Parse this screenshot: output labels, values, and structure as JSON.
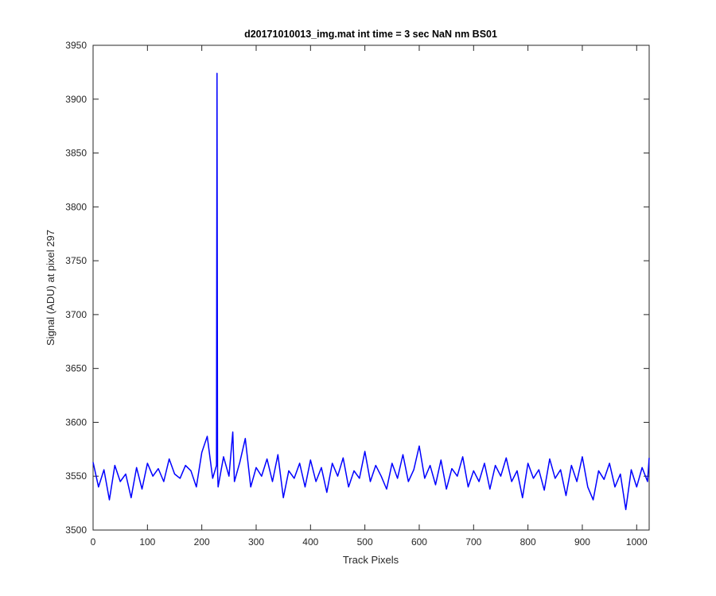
{
  "chart_data": {
    "type": "line",
    "title": "d20171010013_img.mat int time = 3 sec  NaN nm BS01",
    "x_label": "Track Pixels",
    "y_label": "Signal (ADU) at pixel 297",
    "x": [
      0,
      10,
      20,
      30,
      40,
      50,
      60,
      70,
      80,
      90,
      100,
      110,
      120,
      130,
      140,
      150,
      160,
      170,
      180,
      190,
      200,
      210,
      220,
      227,
      228,
      229,
      230,
      240,
      250,
      257,
      260,
      270,
      280,
      290,
      300,
      310,
      320,
      330,
      340,
      350,
      360,
      370,
      380,
      390,
      400,
      410,
      420,
      430,
      440,
      450,
      460,
      470,
      480,
      490,
      500,
      510,
      520,
      530,
      540,
      550,
      560,
      570,
      580,
      590,
      600,
      610,
      620,
      630,
      640,
      650,
      660,
      670,
      680,
      690,
      700,
      710,
      720,
      730,
      740,
      750,
      760,
      770,
      780,
      790,
      800,
      810,
      820,
      830,
      840,
      850,
      860,
      870,
      880,
      890,
      900,
      910,
      920,
      930,
      940,
      950,
      960,
      970,
      980,
      990,
      1000,
      1010,
      1020,
      1023
    ],
    "series": [
      {
        "name": "pixel 297",
        "color": "#0000ff",
        "values": [
          3563,
          3540,
          3556,
          3528,
          3560,
          3545,
          3552,
          3530,
          3558,
          3538,
          3562,
          3550,
          3557,
          3545,
          3566,
          3552,
          3548,
          3560,
          3555,
          3540,
          3572,
          3587,
          3548,
          3560,
          3924,
          3555,
          3540,
          3568,
          3550,
          3591,
          3545,
          3563,
          3585,
          3540,
          3558,
          3550,
          3566,
          3545,
          3570,
          3530,
          3555,
          3548,
          3562,
          3540,
          3565,
          3545,
          3558,
          3535,
          3562,
          3550,
          3567,
          3540,
          3555,
          3548,
          3573,
          3545,
          3560,
          3550,
          3538,
          3562,
          3548,
          3570,
          3545,
          3556,
          3578,
          3548,
          3560,
          3542,
          3565,
          3538,
          3557,
          3550,
          3568,
          3540,
          3555,
          3545,
          3562,
          3538,
          3560,
          3550,
          3567,
          3545,
          3555,
          3530,
          3562,
          3548,
          3556,
          3537,
          3566,
          3548,
          3556,
          3532,
          3560,
          3545,
          3568,
          3540,
          3528,
          3555,
          3547,
          3562,
          3540,
          3552,
          3519,
          3556,
          3540,
          3558,
          3545,
          3567
        ]
      }
    ],
    "xlim": [
      0,
      1023
    ],
    "ylim": [
      3500,
      3950
    ],
    "xticks": [
      0,
      100,
      200,
      300,
      400,
      500,
      600,
      700,
      800,
      900,
      1000
    ],
    "yticks": [
      3500,
      3550,
      3600,
      3650,
      3700,
      3750,
      3800,
      3850,
      3900,
      3950
    ],
    "grid": false
  }
}
